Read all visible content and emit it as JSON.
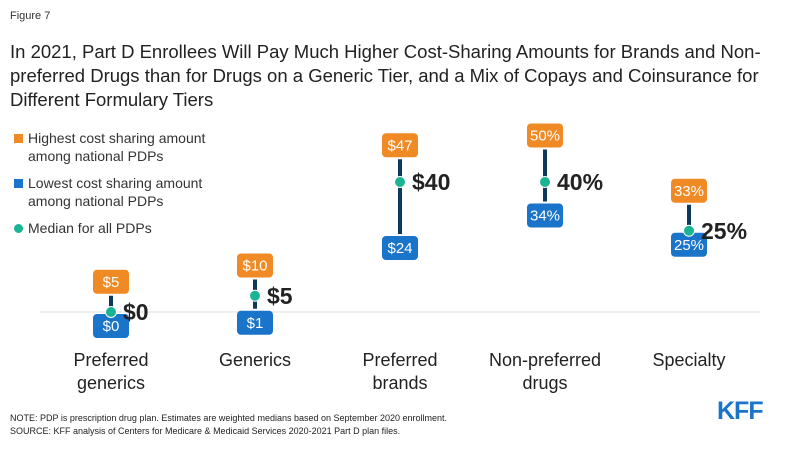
{
  "figure_label": "Figure 7",
  "title": "In 2021, Part D Enrollees Will Pay Much Higher Cost-Sharing Amounts for Brands and Non-preferred Drugs than for Drugs on a Generic Tier, and a Mix of Copays and Coinsurance for Different Formulary Tiers",
  "legend": [
    {
      "label_line1": "Highest cost sharing amount",
      "label_line2": "among national PDPs",
      "color": "#f08a24",
      "shape": "square"
    },
    {
      "label_line1": "Lowest cost sharing amount",
      "label_line2": "among national PDPs",
      "color": "#1a74c9",
      "shape": "square"
    },
    {
      "label_line1": "Median for all PDPs",
      "label_line2": "",
      "color": "#1ab394",
      "shape": "circle"
    }
  ],
  "colors": {
    "high": "#f08a24",
    "low": "#1a74c9",
    "median": "#1ab394",
    "range": "#0d3a5c",
    "baseline": "#dddddd"
  },
  "chart_data": {
    "type": "range",
    "categories": [
      {
        "line1": "Preferred",
        "line2": "generics"
      },
      {
        "line1": "Generics",
        "line2": ""
      },
      {
        "line1": "Preferred",
        "line2": "brands"
      },
      {
        "line1": "Non-preferred",
        "line2": "drugs"
      },
      {
        "line1": "Specialty",
        "line2": ""
      }
    ],
    "series": [
      {
        "name": "Highest cost sharing amount among national PDPs",
        "values": [
          5,
          10,
          47,
          50,
          33
        ],
        "labels": [
          "$5",
          "$10",
          "$47",
          "50%",
          "33%"
        ]
      },
      {
        "name": "Lowest cost sharing amount among national PDPs",
        "values": [
          0,
          1,
          24,
          34,
          25
        ],
        "labels": [
          "$0",
          "$1",
          "$24",
          "34%",
          "25%"
        ]
      },
      {
        "name": "Median for all PDPs",
        "values": [
          0,
          5,
          40,
          40,
          25
        ],
        "labels": [
          "$0",
          "$5",
          "$40",
          "40%",
          "25%"
        ]
      }
    ]
  },
  "note": "NOTE: PDP is prescription drug plan. Estimates are weighted medians based on September 2020 enrollment.",
  "source": "SOURCE: KFF analysis of Centers for Medicare & Medicaid Services 2020-2021 Part D plan files.",
  "logo": "KFF"
}
